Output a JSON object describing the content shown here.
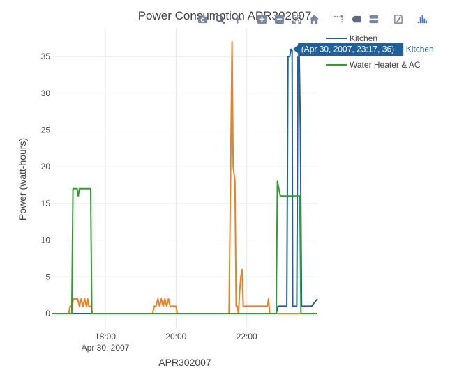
{
  "chart_data": {
    "type": "line",
    "title": "Power Consumption APR302007",
    "xlabel": "APR302007",
    "ylabel": "Power (watt-hours)",
    "x_range": [
      "2007-04-30 16:30",
      "2007-04-30 24:00"
    ],
    "ylim": [
      -1.9,
      38.9
    ],
    "x_ticks": [
      {
        "time": "18:00",
        "label": "18:00",
        "sublabel": "Apr 30, 2007"
      },
      {
        "time": "20:00",
        "label": "20:00",
        "sublabel": ""
      },
      {
        "time": "22:00",
        "label": "22:00",
        "sublabel": ""
      }
    ],
    "y_ticks": [
      0,
      5,
      10,
      15,
      20,
      25,
      30,
      35
    ],
    "grid": true,
    "legend_position": "top-right",
    "series": [
      {
        "name": "Kitchen",
        "color": "#1f5f9a",
        "points": [
          [
            "16:30",
            0
          ],
          [
            "22:50",
            0
          ],
          [
            "22:53",
            1
          ],
          [
            "23:08",
            1
          ],
          [
            "23:10",
            35
          ],
          [
            "23:13",
            35
          ],
          [
            "23:15",
            36
          ],
          [
            "23:17",
            36
          ],
          [
            "23:18",
            1
          ],
          [
            "23:25",
            1
          ],
          [
            "23:27",
            35
          ],
          [
            "23:29",
            36
          ],
          [
            "23:31",
            25
          ],
          [
            "23:33",
            1
          ],
          [
            "23:50",
            1
          ],
          [
            "24:00",
            2
          ]
        ]
      },
      {
        "name": "",
        "color": "#f07f1c",
        "points": [
          [
            "16:30",
            0
          ],
          [
            "16:58",
            0
          ],
          [
            "17:00",
            1
          ],
          [
            "17:03",
            1
          ],
          [
            "17:06",
            2
          ],
          [
            "17:13",
            2
          ],
          [
            "17:16",
            1
          ],
          [
            "17:19",
            2
          ],
          [
            "17:22",
            1
          ],
          [
            "17:25",
            2
          ],
          [
            "17:28",
            1
          ],
          [
            "17:30",
            2
          ],
          [
            "17:32",
            1
          ],
          [
            "17:36",
            1
          ],
          [
            "17:38",
            0
          ],
          [
            "19:20",
            0
          ],
          [
            "19:23",
            1
          ],
          [
            "19:26",
            1
          ],
          [
            "19:29",
            2
          ],
          [
            "19:32",
            1
          ],
          [
            "19:35",
            2
          ],
          [
            "19:38",
            1
          ],
          [
            "19:41",
            2
          ],
          [
            "19:44",
            1
          ],
          [
            "19:47",
            2
          ],
          [
            "19:50",
            1
          ],
          [
            "20:00",
            1
          ],
          [
            "20:02",
            0
          ],
          [
            "21:30",
            0
          ],
          [
            "21:35",
            37
          ],
          [
            "21:37",
            20
          ],
          [
            "21:40",
            18
          ],
          [
            "21:42",
            1
          ],
          [
            "21:44",
            1
          ],
          [
            "21:46",
            0
          ],
          [
            "21:48",
            3
          ],
          [
            "21:50",
            5
          ],
          [
            "21:52",
            6
          ],
          [
            "21:54",
            1
          ],
          [
            "22:35",
            1
          ],
          [
            "22:37",
            2
          ],
          [
            "22:39",
            0
          ],
          [
            "24:00",
            0
          ]
        ]
      },
      {
        "name": "Water Heater & AC",
        "color": "#2ca02c",
        "points": [
          [
            "16:30",
            0
          ],
          [
            "17:03",
            0
          ],
          [
            "17:05",
            17
          ],
          [
            "17:12",
            17
          ],
          [
            "17:14",
            16
          ],
          [
            "17:16",
            17
          ],
          [
            "17:35",
            17
          ],
          [
            "17:37",
            0
          ],
          [
            "22:50",
            0
          ],
          [
            "22:52",
            18
          ],
          [
            "22:57",
            16
          ],
          [
            "23:30",
            16
          ],
          [
            "23:32",
            0
          ],
          [
            "24:00",
            0
          ]
        ]
      }
    ],
    "hover_label": {
      "series": "Kitchen",
      "text": "(Apr 30, 2007, 23:17, 36)",
      "point": [
        "23:17",
        36
      ]
    }
  },
  "modebar": {
    "buttons": [
      {
        "name": "camera-icon"
      },
      {
        "name": "zoom-icon"
      },
      {
        "name": "pan-icon"
      },
      {
        "name": "zoom-in-icon"
      },
      {
        "name": "zoom-out-icon"
      },
      {
        "name": "autoscale-icon"
      },
      {
        "name": "home-icon"
      },
      {
        "name": "spike-lines-icon"
      },
      {
        "name": "hover-closest-icon"
      },
      {
        "name": "hover-compare-icon"
      },
      {
        "name": "edit-in-chart-studio-icon"
      },
      {
        "name": "plotly-logo-icon"
      }
    ]
  }
}
